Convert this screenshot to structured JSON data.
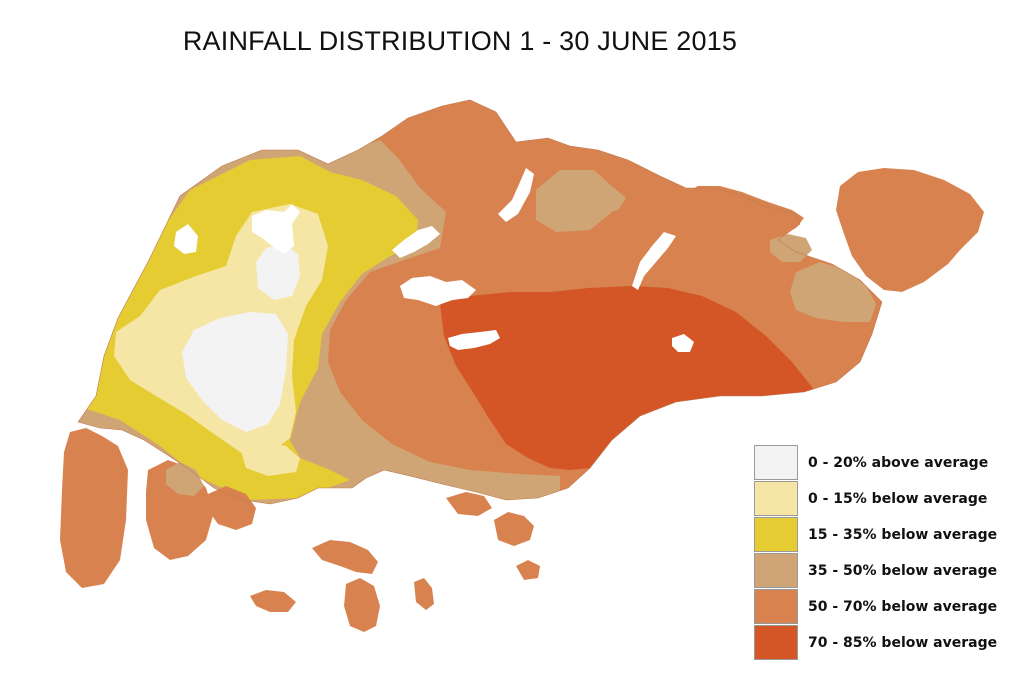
{
  "title": "RAINFALL DISTRIBUTION 1 - 30 JUNE 2015",
  "colors": {
    "background": "#ffffff",
    "water": "#ffffff",
    "c0": "#f3f3f3",
    "c1": "#f5e6a6",
    "c2": "#e5cc33",
    "c3": "#d0a576",
    "c4": "#d8834f",
    "c5": "#d45627"
  },
  "legend": [
    {
      "label": "0 - 20% above average",
      "color": "#f3f3f3"
    },
    {
      "label": "0 - 15% below average",
      "color": "#f5e6a6"
    },
    {
      "label": "15 - 35% below average",
      "color": "#e5cc33"
    },
    {
      "label": "35 - 50% below average",
      "color": "#d0a576"
    },
    {
      "label": "50 - 70% below average",
      "color": "#d8834f"
    },
    {
      "label": "70 - 85% below average",
      "color": "#d45627"
    }
  ]
}
